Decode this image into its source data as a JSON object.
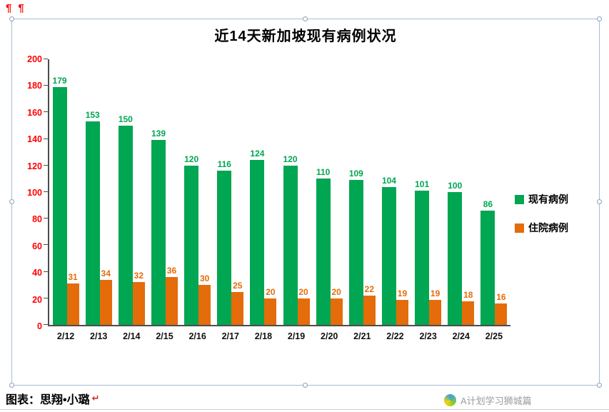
{
  "page": {
    "paragraph_marks": "¶¶",
    "caption": "图表：思翔•小璐",
    "caption_end_mark": "↵",
    "watermark_text": "A计划学习狮城篇"
  },
  "chart_data": {
    "type": "bar",
    "title": "近14天新加坡现有病例状况",
    "categories": [
      "2/12",
      "2/13",
      "2/14",
      "2/15",
      "2/16",
      "2/17",
      "2/18",
      "2/19",
      "2/20",
      "2/21",
      "2/22",
      "2/23",
      "2/24",
      "2/25"
    ],
    "series": [
      {
        "name": "现有病例",
        "color": "#00A651",
        "values": [
          179,
          153,
          150,
          139,
          120,
          116,
          124,
          120,
          110,
          109,
          104,
          101,
          100,
          86
        ]
      },
      {
        "name": "住院病例",
        "color": "#E46C0A",
        "values": [
          31,
          34,
          32,
          36,
          30,
          25,
          20,
          20,
          20,
          22,
          19,
          19,
          18,
          16
        ]
      }
    ],
    "xlabel": "",
    "ylabel": "",
    "ylim": [
      0,
      200
    ],
    "ytick_step": 20,
    "ytick_color": "#FF0000",
    "axis_color": "#4d4d4d",
    "grid": false,
    "legend_position": "right"
  }
}
